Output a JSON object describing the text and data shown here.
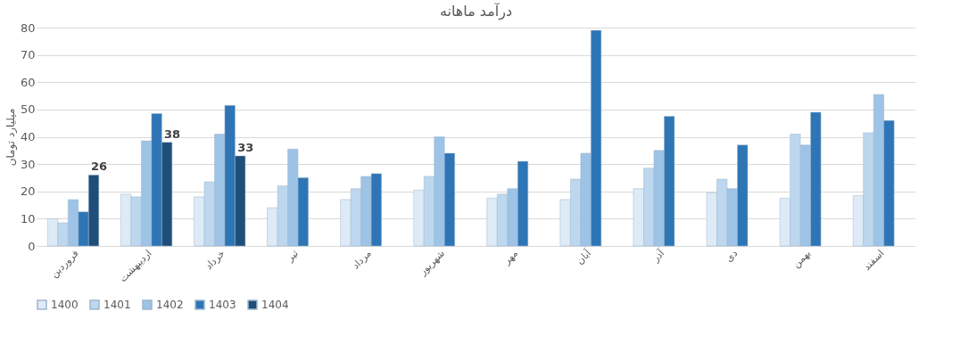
{
  "chart_data": {
    "type": "bar",
    "title": "درآمد ماهانه",
    "ylabel": "میلیارد تومان",
    "categories": [
      "فروردین",
      "اردیبهشت",
      "خرداد",
      "تیر",
      "مرداد",
      "شهریور",
      "مهر",
      "آبان",
      "آذر",
      "دی",
      "بهمن",
      "اسفند"
    ],
    "series": [
      {
        "name": "1400",
        "color": "#deebf7",
        "values": [
          10,
          19,
          18,
          14,
          17,
          20.5,
          17.5,
          17,
          21,
          19.5,
          17.5,
          18.5
        ]
      },
      {
        "name": "1401",
        "color": "#bdd7ee",
        "values": [
          8.5,
          18,
          23.5,
          22,
          21,
          25.5,
          19,
          24.5,
          28.5,
          24.5,
          41,
          41.5
        ]
      },
      {
        "name": "1402",
        "color": "#9dc3e6",
        "values": [
          17,
          38.5,
          41,
          35.5,
          25.5,
          40,
          21,
          34,
          35,
          21,
          37,
          55.5
        ]
      },
      {
        "name": "1403",
        "color": "#2e75b6",
        "values": [
          12.5,
          48.5,
          51.5,
          25,
          26.5,
          34,
          31,
          79,
          47.5,
          37,
          49,
          46
        ]
      },
      {
        "name": "1404",
        "color": "#1f4e79",
        "values": [
          26,
          38,
          33,
          null,
          null,
          null,
          null,
          null,
          null,
          null,
          null,
          null
        ],
        "value_labels": [
          "26",
          "38",
          "33",
          null,
          null,
          null,
          null,
          null,
          null,
          null,
          null,
          null
        ]
      }
    ],
    "ylim": [
      0,
      80
    ],
    "yticks": [
      0,
      10,
      20,
      30,
      40,
      50,
      60,
      70,
      80
    ],
    "grid": "y",
    "legend": "bottom"
  }
}
